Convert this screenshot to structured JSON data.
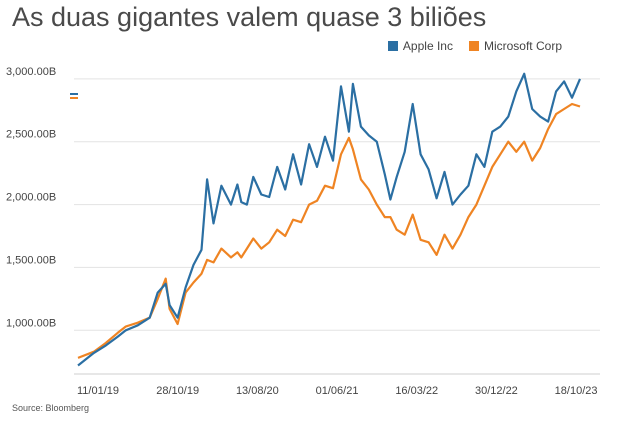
{
  "title": "As duas gigantes valem quase 3 biliões",
  "source": "Source: Bloomberg",
  "chart_data": {
    "type": "line",
    "title": "As duas gigantes valem quase 3 biliões",
    "xlabel": "",
    "ylabel": "",
    "ylim": [
      700,
      3150
    ],
    "y_ticks": [
      "1,000.00B",
      "1,500.00B",
      "2,000.00B",
      "2,500.00B",
      "3,000.00B"
    ],
    "y_tick_values": [
      1000,
      1500,
      2000,
      2500,
      3000
    ],
    "x_ticks": [
      "11/01/19",
      "28/10/19",
      "13/08/20",
      "01/06/21",
      "16/03/22",
      "30/12/22",
      "18/10/23"
    ],
    "x_tick_index": [
      0,
      1,
      2,
      3,
      4,
      5,
      6
    ],
    "grid": "horizontal",
    "legend_position": "top-right",
    "series": [
      {
        "name": "Apple Inc",
        "color": "#2b6fa3",
        "x": [
          0,
          0.2,
          0.35,
          0.5,
          0.6,
          0.75,
          0.9,
          1.0,
          1.1,
          1.15,
          1.25,
          1.35,
          1.45,
          1.55,
          1.62,
          1.7,
          1.8,
          1.92,
          2.0,
          2.05,
          2.12,
          2.2,
          2.3,
          2.4,
          2.5,
          2.6,
          2.7,
          2.8,
          2.9,
          3.0,
          3.1,
          3.2,
          3.3,
          3.4,
          3.45,
          3.55,
          3.65,
          3.75,
          3.85,
          3.92,
          4.0,
          4.1,
          4.2,
          4.3,
          4.4,
          4.5,
          4.6,
          4.7,
          4.8,
          4.9,
          5.0,
          5.1,
          5.2,
          5.3,
          5.4,
          5.5,
          5.6,
          5.7,
          5.8,
          5.9,
          6.0,
          6.1,
          6.2,
          6.3
        ],
        "values": [
          720,
          820,
          880,
          950,
          1000,
          1040,
          1100,
          1300,
          1370,
          1200,
          1100,
          1340,
          1520,
          1640,
          2200,
          1850,
          2150,
          2000,
          2160,
          2020,
          2000,
          2220,
          2080,
          2060,
          2300,
          2120,
          2400,
          2160,
          2480,
          2300,
          2540,
          2350,
          2940,
          2580,
          2960,
          2620,
          2550,
          2500,
          2240,
          2040,
          2220,
          2420,
          2800,
          2400,
          2280,
          2050,
          2260,
          2000,
          2080,
          2150,
          2400,
          2300,
          2580,
          2620,
          2700,
          2900,
          3040,
          2760,
          2700,
          2660,
          2900,
          2980,
          2850,
          3000
        ]
      },
      {
        "name": "Microsoft Corp",
        "color": "#ef8423",
        "x": [
          0,
          0.2,
          0.35,
          0.5,
          0.6,
          0.75,
          0.9,
          1.0,
          1.1,
          1.15,
          1.25,
          1.35,
          1.45,
          1.55,
          1.62,
          1.7,
          1.8,
          1.92,
          2.0,
          2.05,
          2.12,
          2.2,
          2.3,
          2.4,
          2.5,
          2.6,
          2.7,
          2.8,
          2.9,
          3.0,
          3.1,
          3.2,
          3.3,
          3.4,
          3.45,
          3.55,
          3.65,
          3.75,
          3.85,
          3.92,
          4.0,
          4.1,
          4.2,
          4.3,
          4.4,
          4.5,
          4.6,
          4.7,
          4.8,
          4.9,
          5.0,
          5.1,
          5.2,
          5.3,
          5.4,
          5.5,
          5.6,
          5.7,
          5.8,
          5.9,
          6.0,
          6.1,
          6.2,
          6.3
        ],
        "values": [
          780,
          830,
          900,
          980,
          1030,
          1060,
          1100,
          1250,
          1410,
          1170,
          1050,
          1300,
          1380,
          1450,
          1560,
          1540,
          1650,
          1580,
          1620,
          1580,
          1650,
          1730,
          1650,
          1700,
          1800,
          1750,
          1880,
          1860,
          2000,
          2030,
          2150,
          2130,
          2400,
          2530,
          2440,
          2200,
          2120,
          2000,
          1900,
          1900,
          1800,
          1760,
          1920,
          1720,
          1700,
          1600,
          1760,
          1650,
          1760,
          1900,
          2000,
          2150,
          2300,
          2400,
          2500,
          2420,
          2500,
          2350,
          2450,
          2600,
          2720,
          2760,
          2800,
          2780
        ]
      }
    ]
  }
}
